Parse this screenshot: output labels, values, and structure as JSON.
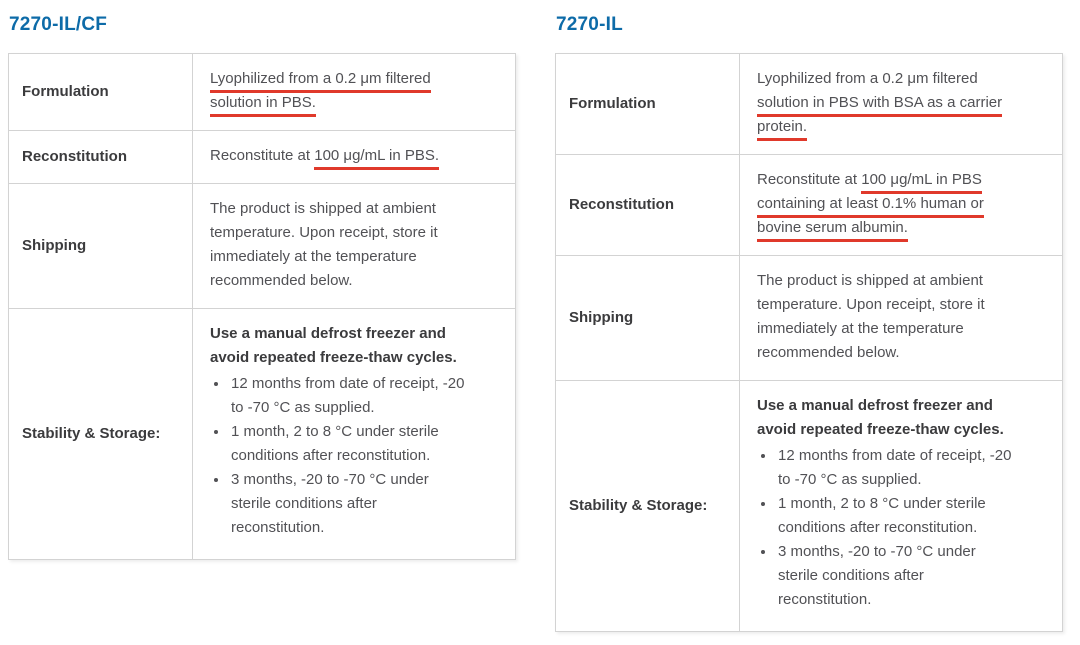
{
  "colors": {
    "title_blue": "#0d6ba8",
    "body_text": "#515155",
    "label_text": "#3b3b3d",
    "table_border": "#d3d3d3",
    "annotation_red": "#e0392b"
  },
  "tables": [
    {
      "title": "7270-IL/CF",
      "rows": [
        {
          "label": "Formulation",
          "content": [
            {
              "type": "para",
              "segments": [
                {
                  "text": "Lyophilized from a 0.2 μm filtered",
                  "underline": true,
                  "break": true
                },
                {
                  "text": "solution in PBS.",
                  "underline": true
                }
              ]
            }
          ]
        },
        {
          "label": "Reconstitution",
          "content": [
            {
              "type": "para",
              "segments": [
                {
                  "text": "Reconstitute at "
                },
                {
                  "text": "100 μg/mL in PBS.",
                  "underline": true
                }
              ]
            }
          ]
        },
        {
          "label": "Shipping",
          "content": [
            {
              "type": "para",
              "segments": [
                {
                  "text": "The product is shipped at ambient",
                  "break": true
                },
                {
                  "text": "temperature. Upon receipt, store it",
                  "break": true
                },
                {
                  "text": "immediately at the temperature",
                  "break": true
                },
                {
                  "text": "recommended below."
                }
              ]
            }
          ]
        },
        {
          "label": "Stability & Storage:",
          "content": [
            {
              "type": "para",
              "bold": true,
              "segments": [
                {
                  "text": "Use a manual defrost freezer and",
                  "break": true
                },
                {
                  "text": "avoid repeated freeze-thaw cycles."
                }
              ]
            },
            {
              "type": "list",
              "items": [
                {
                  "lines": [
                    "12 months from date of receipt, -20",
                    "to -70 °C as supplied."
                  ]
                },
                {
                  "lines": [
                    "1 month, 2 to 8 °C under sterile",
                    "conditions after reconstitution."
                  ]
                },
                {
                  "lines": [
                    "3 months, -20 to -70 °C under",
                    "sterile conditions after",
                    "reconstitution."
                  ]
                }
              ]
            }
          ]
        }
      ]
    },
    {
      "title": "7270-IL",
      "rows": [
        {
          "label": "Formulation",
          "content": [
            {
              "type": "para",
              "segments": [
                {
                  "text": "Lyophilized from a 0.2 μm filtered",
                  "break": true
                },
                {
                  "text": "solution in PBS with BSA as a carrier",
                  "underline": true,
                  "break": true
                },
                {
                  "text": "protein.",
                  "underline": true
                }
              ]
            }
          ]
        },
        {
          "label": "Reconstitution",
          "content": [
            {
              "type": "para",
              "segments": [
                {
                  "text": "Reconstitute at "
                },
                {
                  "text": "100 μg/mL in PBS",
                  "underline": true,
                  "break": true
                },
                {
                  "text": "containing at least 0.1% human or",
                  "underline": true,
                  "break": true
                },
                {
                  "text": "bovine serum albumin.",
                  "underline": true
                }
              ]
            }
          ]
        },
        {
          "label": "Shipping",
          "content": [
            {
              "type": "para",
              "segments": [
                {
                  "text": "The product is shipped at ambient",
                  "break": true
                },
                {
                  "text": "temperature. Upon receipt, store it",
                  "break": true
                },
                {
                  "text": "immediately at the temperature",
                  "break": true
                },
                {
                  "text": "recommended below."
                }
              ]
            }
          ]
        },
        {
          "label": "Stability & Storage:",
          "content": [
            {
              "type": "para",
              "bold": true,
              "segments": [
                {
                  "text": "Use a manual defrost freezer and",
                  "break": true
                },
                {
                  "text": "avoid repeated freeze-thaw cycles."
                }
              ]
            },
            {
              "type": "list",
              "items": [
                {
                  "lines": [
                    "12 months from date of receipt, -20",
                    "to -70 °C as supplied."
                  ]
                },
                {
                  "lines": [
                    "1 month, 2 to 8 °C under sterile",
                    "conditions after reconstitution."
                  ]
                },
                {
                  "lines": [
                    "3 months, -20 to -70 °C under",
                    "sterile conditions after",
                    "reconstitution."
                  ]
                }
              ]
            }
          ]
        }
      ]
    }
  ]
}
